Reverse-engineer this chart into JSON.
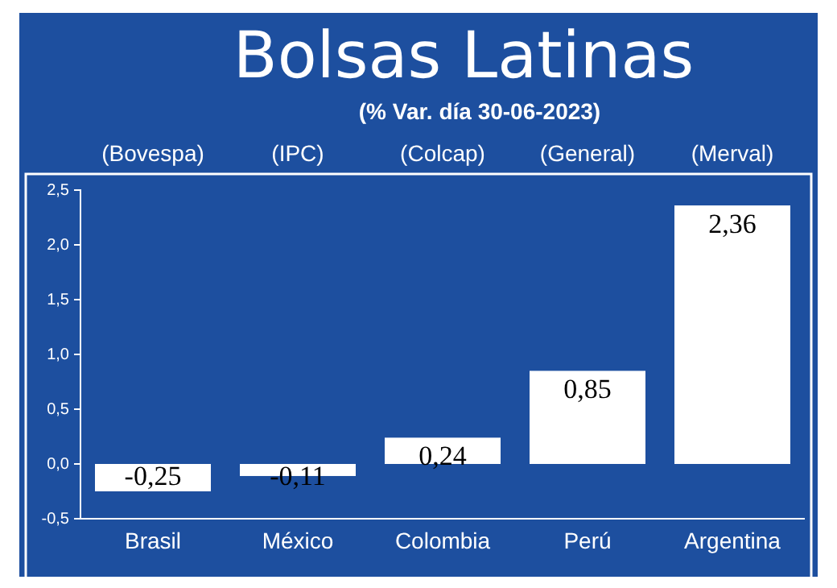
{
  "chart_data": {
    "type": "bar",
    "title": "Bolsas Latinas",
    "subtitle": "(% Var. día 30-06-2023)",
    "categories": [
      "Brasil",
      "México",
      "Colombia",
      "Perú",
      "Argentina"
    ],
    "values": [
      -0.25,
      -0.11,
      0.24,
      0.85,
      2.36
    ],
    "value_labels": [
      "-0,25",
      "-0,11",
      "0,24",
      "0,85",
      "2,36"
    ],
    "color": "#ffffff",
    "ylim": [
      -0.5,
      2.5
    ],
    "yticks": [
      {
        "value": -0.5,
        "label": "-0,5"
      },
      {
        "value": 0,
        "label": "0,0"
      },
      {
        "value": 0.5,
        "label": "0,5"
      },
      {
        "value": 1,
        "label": "1,0"
      },
      {
        "value": 1.5,
        "label": "1,5"
      },
      {
        "value": 2,
        "label": "2,0"
      },
      {
        "value": 2.5,
        "label": "2,5"
      }
    ],
    "annotations": [
      "(Bovespa)",
      "(IPC)",
      "(Colcap)",
      "(General)",
      "(Merval)"
    ],
    "grid": false
  }
}
